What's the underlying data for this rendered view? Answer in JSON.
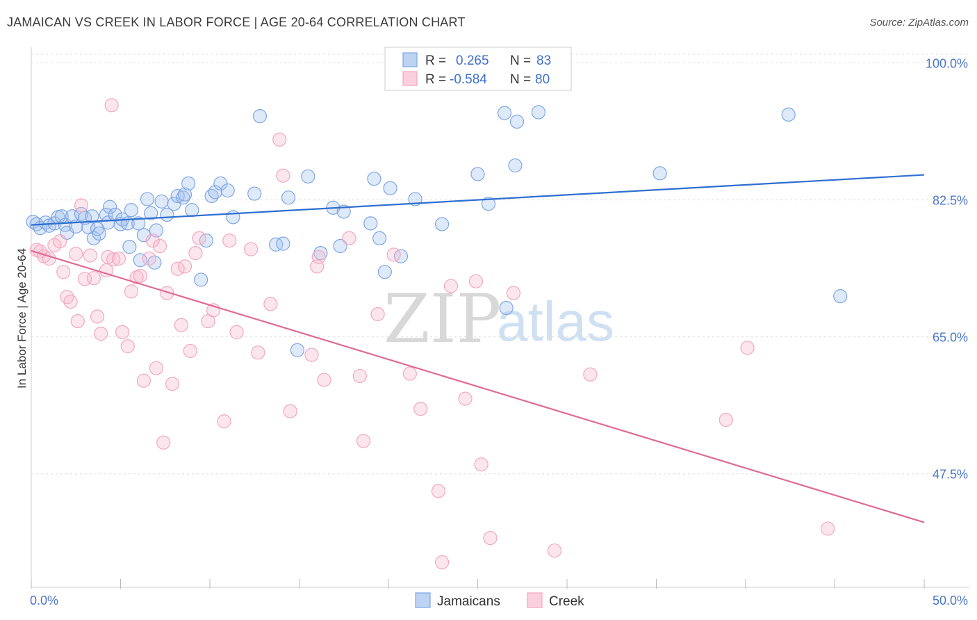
{
  "header": {
    "title": "JAMAICAN VS CREEK IN LABOR FORCE | AGE 20-64 CORRELATION CHART",
    "source": "Source: ZipAtlas.com"
  },
  "watermark": {
    "zip": "ZIP",
    "atlas": "atlas"
  },
  "legend": {
    "items": [
      {
        "r_label": "R =",
        "r_value": "0.265",
        "n_label": "N =",
        "n_value": "83",
        "color": "#7ea6e6"
      },
      {
        "r_label": "R =",
        "r_value": "-0.584",
        "n_label": "N =",
        "n_value": "80",
        "color": "#f2a7bf"
      }
    ]
  },
  "chart_data": {
    "type": "scatter",
    "title": "JAMAICAN VS CREEK IN LABOR FORCE | AGE 20-64 CORRELATION CHART",
    "ylabel": "In Labor Force | Age 20-64",
    "xlabel": "",
    "xlim": [
      0,
      50
    ],
    "ylim": [
      33,
      102
    ],
    "x_tick_labels": [
      "0.0%",
      "50.0%"
    ],
    "y_ticks": [
      47.5,
      65.0,
      82.5,
      100.0
    ],
    "y_tick_labels": [
      "47.5%",
      "65.0%",
      "82.5%",
      "100.0%"
    ],
    "grid": true,
    "legend_position": "top-center",
    "series": [
      {
        "name": "Jamaicans",
        "color": "#7ea6e6",
        "trend": {
          "x": [
            0,
            50
          ],
          "y": [
            79.3,
            85.7
          ]
        },
        "points": [
          [
            0.1,
            79.7
          ],
          [
            0.3,
            79.4
          ],
          [
            0.5,
            78.9
          ],
          [
            0.8,
            79.6
          ],
          [
            1.0,
            79.2
          ],
          [
            1.3,
            79.5
          ],
          [
            1.5,
            80.3
          ],
          [
            1.7,
            80.4
          ],
          [
            1.9,
            79.3
          ],
          [
            2.0,
            78.3
          ],
          [
            2.3,
            80.4
          ],
          [
            2.5,
            79.1
          ],
          [
            2.8,
            80.7
          ],
          [
            3.0,
            80.2
          ],
          [
            3.2,
            79.0
          ],
          [
            3.4,
            80.4
          ],
          [
            3.5,
            77.6
          ],
          [
            3.7,
            78.8
          ],
          [
            3.8,
            78.2
          ],
          [
            4.2,
            80.6
          ],
          [
            4.3,
            79.6
          ],
          [
            4.4,
            81.6
          ],
          [
            4.7,
            80.6
          ],
          [
            5.0,
            79.4
          ],
          [
            5.1,
            80.0
          ],
          [
            5.4,
            79.5
          ],
          [
            5.5,
            76.5
          ],
          [
            5.6,
            81.2
          ],
          [
            6.0,
            79.5
          ],
          [
            6.1,
            74.8
          ],
          [
            6.3,
            78.0
          ],
          [
            6.5,
            82.6
          ],
          [
            6.7,
            80.8
          ],
          [
            6.9,
            74.5
          ],
          [
            7.0,
            78.6
          ],
          [
            7.3,
            82.3
          ],
          [
            7.6,
            80.6
          ],
          [
            8.0,
            82.0
          ],
          [
            8.2,
            83.0
          ],
          [
            8.5,
            82.8
          ],
          [
            8.6,
            83.2
          ],
          [
            8.8,
            84.6
          ],
          [
            9.0,
            81.2
          ],
          [
            9.5,
            72.3
          ],
          [
            9.8,
            77.3
          ],
          [
            10.1,
            83.0
          ],
          [
            10.3,
            83.5
          ],
          [
            10.6,
            84.6
          ],
          [
            11.0,
            83.7
          ],
          [
            11.3,
            80.3
          ],
          [
            12.5,
            83.3
          ],
          [
            12.8,
            93.2
          ],
          [
            13.7,
            76.8
          ],
          [
            14.1,
            76.9
          ],
          [
            14.4,
            82.8
          ],
          [
            14.9,
            63.3
          ],
          [
            15.5,
            85.5
          ],
          [
            16.2,
            75.7
          ],
          [
            16.9,
            81.5
          ],
          [
            17.3,
            76.6
          ],
          [
            17.5,
            81.0
          ],
          [
            19.0,
            79.5
          ],
          [
            19.2,
            85.2
          ],
          [
            19.5,
            77.6
          ],
          [
            19.8,
            73.3
          ],
          [
            20.1,
            84.0
          ],
          [
            20.7,
            75.3
          ],
          [
            21.5,
            82.6
          ],
          [
            23.0,
            79.4
          ],
          [
            25.0,
            85.8
          ],
          [
            25.6,
            82.0
          ],
          [
            26.5,
            93.6
          ],
          [
            26.6,
            68.7
          ],
          [
            27.1,
            86.9
          ],
          [
            27.2,
            92.5
          ],
          [
            28.4,
            93.7
          ],
          [
            35.2,
            85.9
          ],
          [
            42.4,
            93.4
          ],
          [
            45.3,
            70.2
          ]
        ]
      },
      {
        "name": "Creek",
        "color": "#f2a7bf",
        "trend": {
          "x": [
            0,
            50
          ],
          "y": [
            76.0,
            41.3
          ]
        },
        "points": [
          [
            0.3,
            76.1
          ],
          [
            0.5,
            75.9
          ],
          [
            0.7,
            75.3
          ],
          [
            1.0,
            75.0
          ],
          [
            1.3,
            76.7
          ],
          [
            1.6,
            77.2
          ],
          [
            1.8,
            73.3
          ],
          [
            2.0,
            70.1
          ],
          [
            2.2,
            69.5
          ],
          [
            2.5,
            75.6
          ],
          [
            2.6,
            67.0
          ],
          [
            2.8,
            81.8
          ],
          [
            3.0,
            72.4
          ],
          [
            3.3,
            75.4
          ],
          [
            3.5,
            72.5
          ],
          [
            3.7,
            67.6
          ],
          [
            3.9,
            65.4
          ],
          [
            4.2,
            73.5
          ],
          [
            4.3,
            75.2
          ],
          [
            4.5,
            94.6
          ],
          [
            4.6,
            74.9
          ],
          [
            4.9,
            75.0
          ],
          [
            5.1,
            65.6
          ],
          [
            5.4,
            63.8
          ],
          [
            5.6,
            70.8
          ],
          [
            5.9,
            72.6
          ],
          [
            6.1,
            72.8
          ],
          [
            6.3,
            59.4
          ],
          [
            6.6,
            75.0
          ],
          [
            6.8,
            77.3
          ],
          [
            7.0,
            61.0
          ],
          [
            7.2,
            76.6
          ],
          [
            7.4,
            51.5
          ],
          [
            7.6,
            70.6
          ],
          [
            7.9,
            59.0
          ],
          [
            8.2,
            73.7
          ],
          [
            8.4,
            66.5
          ],
          [
            8.6,
            74.0
          ],
          [
            8.9,
            63.2
          ],
          [
            9.2,
            75.7
          ],
          [
            9.4,
            77.6
          ],
          [
            9.9,
            67.0
          ],
          [
            10.2,
            68.4
          ],
          [
            10.8,
            54.2
          ],
          [
            11.1,
            77.3
          ],
          [
            11.5,
            65.6
          ],
          [
            12.3,
            76.2
          ],
          [
            12.7,
            63.0
          ],
          [
            13.4,
            69.2
          ],
          [
            13.9,
            90.2
          ],
          [
            14.1,
            85.6
          ],
          [
            14.5,
            55.5
          ],
          [
            15.7,
            62.7
          ],
          [
            16.0,
            74.0
          ],
          [
            16.1,
            75.2
          ],
          [
            16.4,
            59.5
          ],
          [
            17.8,
            77.6
          ],
          [
            18.4,
            60.0
          ],
          [
            18.6,
            51.7
          ],
          [
            19.4,
            67.9
          ],
          [
            20.3,
            75.5
          ],
          [
            21.2,
            60.3
          ],
          [
            21.8,
            55.8
          ],
          [
            22.8,
            45.3
          ],
          [
            23.0,
            36.2
          ],
          [
            23.5,
            71.5
          ],
          [
            24.3,
            57.1
          ],
          [
            24.9,
            72.1
          ],
          [
            25.2,
            48.7
          ],
          [
            25.7,
            39.3
          ],
          [
            27.0,
            70.6
          ],
          [
            29.3,
            37.7
          ],
          [
            31.3,
            60.2
          ],
          [
            38.9,
            54.4
          ],
          [
            40.1,
            63.6
          ],
          [
            44.6,
            40.5
          ]
        ]
      }
    ]
  },
  "bottom_legend": [
    {
      "label": "Jamaicans",
      "color": "#7ea6e6"
    },
    {
      "label": "Creek",
      "color": "#f2a7bf"
    }
  ]
}
